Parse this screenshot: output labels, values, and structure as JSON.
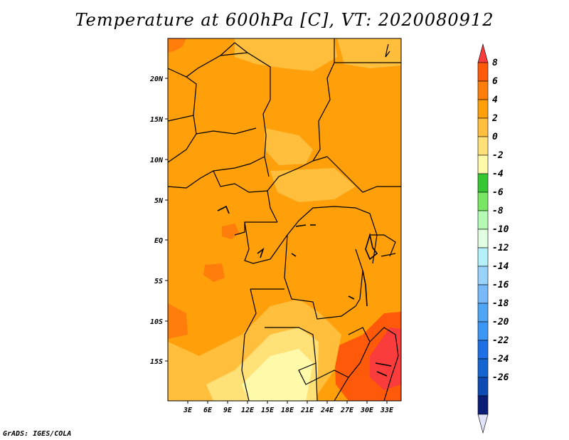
{
  "title": "Temperature at 600hPa [C], VT: 2020080912",
  "footer": "GrADS: IGES/COLA",
  "map": {
    "lat_labels": [
      "20N",
      "15N",
      "10N",
      "5N",
      "EQ",
      "5S",
      "10S",
      "15S"
    ],
    "lon_labels": [
      "3E",
      "6E",
      "9E",
      "12E",
      "15E",
      "18E",
      "21E",
      "24E",
      "27E",
      "30E",
      "33E"
    ],
    "lon_range": [
      0,
      35
    ],
    "lat_range": [
      -20,
      25
    ]
  },
  "colorbar": {
    "labels": [
      "8",
      "6",
      "4",
      "2",
      "0",
      "-2",
      "-4",
      "-6",
      "-8",
      "-10",
      "-12",
      "-14",
      "-16",
      "-18",
      "-20",
      "-22",
      "-24",
      "-26"
    ],
    "colors": [
      "#fa3c3c",
      "#ff5a0a",
      "#ff7d0a",
      "#ff9f0a",
      "#ffbe3c",
      "#ffe178",
      "#fffaaa",
      "#36c832",
      "#78e664",
      "#b4fab4",
      "#e1ffe1",
      "#b4f0fa",
      "#96d2fa",
      "#78b9fa",
      "#50a5f5",
      "#3c96f5",
      "#1e6ee6",
      "#1464d2",
      "#0f4bb4",
      "#0a1e78",
      "#e1e1fa"
    ]
  }
}
